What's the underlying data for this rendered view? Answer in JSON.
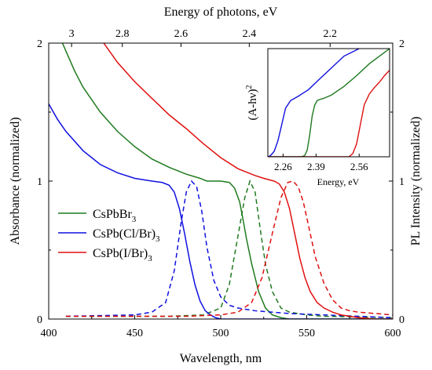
{
  "chart_data": [
    {
      "type": "line",
      "xlabel": "Wavelength, nm",
      "xlabel_top": "Energy of photons, eV",
      "ylabel_left": "Absorbance (normalized)",
      "ylabel_right": "PL Intensity (normalized)",
      "xlim": [
        400,
        600
      ],
      "ylim": [
        0,
        2
      ],
      "x_ticks": [
        400,
        450,
        500,
        550,
        600
      ],
      "y_ticks": [
        0,
        1,
        2
      ],
      "y_ticks_right": [
        0,
        1,
        2
      ],
      "top_ticks": [
        {
          "label": "3",
          "wavelength": 413.3
        },
        {
          "label": "2.8",
          "wavelength": 442.8
        },
        {
          "label": "2.6",
          "wavelength": 476.9
        },
        {
          "label": "2.4",
          "wavelength": 516.6
        },
        {
          "label": "2.2",
          "wavelength": 563.6
        }
      ],
      "grid": false,
      "legend_position": "lower-left",
      "series": [
        {
          "name": "CsPbBr3",
          "name_main": "CsPbBr",
          "name_sub": "3",
          "color": "#1f7a1f",
          "absorbance": {
            "x": [
              408,
              415,
              420,
              430,
              440,
              450,
              460,
              470,
              480,
              488,
              492,
              496,
              500,
              505,
              508,
              511,
              513,
              515,
              518,
              522,
              526,
              530,
              535,
              540,
              550,
              560,
              570,
              580,
              590,
              600
            ],
            "y": [
              2.0,
              1.8,
              1.68,
              1.5,
              1.36,
              1.25,
              1.16,
              1.1,
              1.05,
              1.02,
              1.0,
              1.0,
              1.0,
              0.99,
              0.95,
              0.85,
              0.72,
              0.58,
              0.4,
              0.2,
              0.08,
              0.03,
              0.01,
              0.0,
              0.0,
              0.0,
              0.0,
              0.0,
              0.0,
              0.0
            ]
          },
          "pl": {
            "x": [
              410,
              470,
              490,
              500,
              505,
              510,
              514,
              517,
              520,
              523,
              526,
              530,
              535,
              540,
              550,
              560,
              600
            ],
            "y": [
              0.02,
              0.02,
              0.03,
              0.08,
              0.25,
              0.6,
              0.88,
              1.0,
              0.92,
              0.65,
              0.4,
              0.2,
              0.08,
              0.05,
              0.03,
              0.02,
              0.01
            ]
          }
        },
        {
          "name": "CsPb(Cl/Br)3",
          "name_main": "CsPb(Cl/Br)",
          "name_sub": "3",
          "color": "#1010e0",
          "absorbance": {
            "x": [
              400,
              405,
              410,
              420,
              430,
              440,
              450,
              460,
              466,
              470,
              473,
              476,
              479,
              482,
              485,
              488,
              491,
              494,
              497,
              500,
              510,
              520,
              530,
              540,
              550,
              560,
              570,
              580,
              590,
              600
            ],
            "y": [
              1.56,
              1.45,
              1.36,
              1.22,
              1.12,
              1.06,
              1.02,
              1.0,
              0.99,
              0.97,
              0.92,
              0.8,
              0.62,
              0.42,
              0.25,
              0.13,
              0.06,
              0.03,
              0.01,
              0.0,
              0.0,
              0.0,
              0.0,
              0.0,
              0.0,
              0.0,
              0.0,
              0.0,
              0.0,
              0.0
            ]
          },
          "pl": {
            "x": [
              410,
              450,
              460,
              468,
              473,
              477,
              480,
              483,
              486,
              489,
              492,
              496,
              500,
              505,
              510,
              520,
              530,
              540,
              560,
              580,
              600
            ],
            "y": [
              0.02,
              0.03,
              0.05,
              0.12,
              0.35,
              0.7,
              0.92,
              1.0,
              0.96,
              0.78,
              0.52,
              0.28,
              0.16,
              0.1,
              0.08,
              0.06,
              0.05,
              0.04,
              0.03,
              0.02,
              0.01
            ]
          }
        },
        {
          "name": "CsPb(I/Br)3",
          "name_main": "CsPb(I/Br)",
          "name_sub": "3",
          "color": "#e01010",
          "absorbance": {
            "x": [
              432,
              440,
              450,
              460,
              470,
              480,
              490,
              500,
              510,
              520,
              525,
              528,
              531,
              534,
              537,
              540,
              543,
              546,
              549,
              552,
              556,
              560,
              565,
              570,
              580,
              590,
              600
            ],
            "y": [
              2.0,
              1.86,
              1.72,
              1.6,
              1.48,
              1.38,
              1.27,
              1.17,
              1.09,
              1.04,
              1.02,
              1.01,
              1.0,
              0.98,
              0.92,
              0.8,
              0.62,
              0.44,
              0.3,
              0.2,
              0.12,
              0.08,
              0.05,
              0.03,
              0.01,
              0.0,
              0.0
            ]
          },
          "pl": {
            "x": [
              410,
              480,
              500,
              510,
              518,
              524,
              530,
              535,
              539,
              542,
              545,
              548,
              551,
              555,
              560,
              565,
              570,
              575,
              580,
              590,
              600
            ],
            "y": [
              0.02,
              0.02,
              0.03,
              0.05,
              0.12,
              0.3,
              0.62,
              0.88,
              0.99,
              1.0,
              0.96,
              0.85,
              0.68,
              0.45,
              0.26,
              0.14,
              0.08,
              0.06,
              0.05,
              0.04,
              0.03
            ]
          }
        }
      ]
    },
    {
      "type": "line",
      "role": "inset",
      "ylabel_main": "(A-hν)",
      "ylabel_sup": "2",
      "xlabel": "Energy, eV",
      "xlim": [
        2.2,
        2.68
      ],
      "ylim": [
        0,
        1
      ],
      "x_ticks": [
        2.26,
        2.39,
        2.56
      ],
      "x_tick_labels": [
        "2.26",
        "2.39",
        "2.56"
      ],
      "series": [
        {
          "name": "CsPbBr3",
          "color": "#1f7a1f",
          "x": [
            2.2,
            2.3,
            2.33,
            2.345,
            2.355,
            2.365,
            2.375,
            2.385,
            2.395,
            2.405,
            2.42,
            2.45,
            2.5,
            2.55,
            2.6,
            2.68
          ],
          "y": [
            0.0,
            0.0,
            0.0,
            0.01,
            0.06,
            0.2,
            0.38,
            0.48,
            0.52,
            0.53,
            0.54,
            0.57,
            0.65,
            0.75,
            0.86,
            1.0
          ]
        },
        {
          "name": "CsPb(Cl/Br)3",
          "color": "#1010e0",
          "x": [
            2.2,
            2.21,
            2.225,
            2.24,
            2.255,
            2.27,
            2.29,
            2.32,
            2.36,
            2.4,
            2.45,
            2.5,
            2.56
          ],
          "y": [
            0.0,
            0.01,
            0.05,
            0.15,
            0.3,
            0.45,
            0.52,
            0.56,
            0.62,
            0.71,
            0.82,
            0.93,
            1.0
          ]
        },
        {
          "name": "CsPb(I/Br)3",
          "color": "#e01010",
          "x": [
            2.2,
            2.45,
            2.5,
            2.52,
            2.535,
            2.55,
            2.565,
            2.58,
            2.6,
            2.62,
            2.64,
            2.66,
            2.68
          ],
          "y": [
            0.0,
            0.0,
            0.0,
            0.0,
            0.03,
            0.12,
            0.3,
            0.48,
            0.58,
            0.64,
            0.69,
            0.75,
            0.8
          ]
        }
      ]
    }
  ]
}
